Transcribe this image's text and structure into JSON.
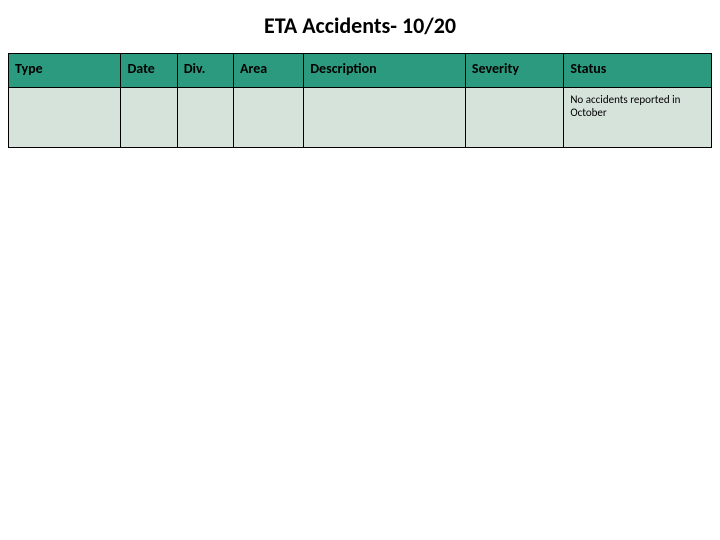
{
  "title": "ETA Accidents- 10/20",
  "title_fontsize": 22,
  "table": {
    "columns": [
      {
        "label": "Type",
        "width_pct": 16
      },
      {
        "label": "Date",
        "width_pct": 8
      },
      {
        "label": "Div.",
        "width_pct": 8
      },
      {
        "label": "Area",
        "width_pct": 10
      },
      {
        "label": "Description",
        "width_pct": 23
      },
      {
        "label": "Severity",
        "width_pct": 14
      },
      {
        "label": "Status",
        "width_pct": 21
      }
    ],
    "header_bg": "#2c9a7f",
    "header_fontsize": 14,
    "body_bg": "#d6e3db",
    "border_color": "#000000",
    "row": {
      "type": "",
      "date": "",
      "div": "",
      "area": "",
      "description": "",
      "severity": "",
      "status": "No accidents reported in October"
    },
    "cell_fontsize": 11
  },
  "background_color": "#ffffff"
}
